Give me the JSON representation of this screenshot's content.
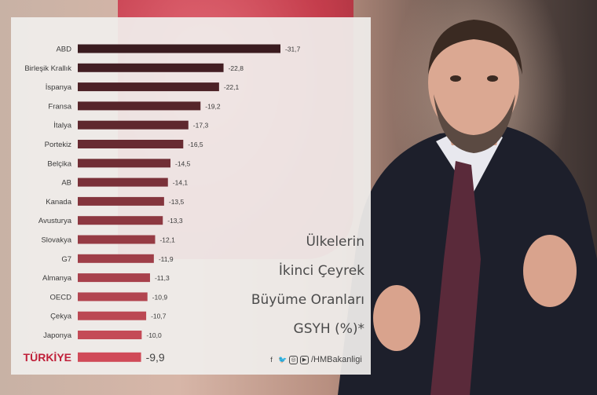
{
  "chart_data": {
    "type": "bar",
    "orientation": "horizontal",
    "categories": [
      "ABD",
      "Birleşik Krallık",
      "İspanya",
      "Fransa",
      "İtalya",
      "Portekiz",
      "Belçika",
      "AB",
      "Kanada",
      "Avusturya",
      "Slovakya",
      "G7",
      "Almanya",
      "OECD",
      "Çekya",
      "Japonya",
      "TÜRKİYE"
    ],
    "values": [
      -31.7,
      -22.8,
      -22.1,
      -19.2,
      -17.3,
      -16.5,
      -14.5,
      -14.1,
      -13.5,
      -13.3,
      -12.1,
      -11.9,
      -11.3,
      -10.9,
      -10.7,
      -10.0,
      -9.9
    ],
    "value_labels": [
      "-31,7",
      "-22,8",
      "-22,1",
      "-19,2",
      "-17,3",
      "-16,5",
      "-14,5",
      "-14,1",
      "-13,5",
      "-13,3",
      "-12,1",
      "-11,9",
      "-11,3",
      "-10,9",
      "-10,7",
      "-10,0",
      "-9,9"
    ],
    "title_lines": [
      "Ülkelerin",
      "İkinci Çeyrek",
      "Büyüme Oranları",
      "GSYH (%)*"
    ],
    "highlight": "TÜRKİYE",
    "grid": false,
    "legend": "none",
    "colors": {
      "dark": "#3a1b1f",
      "light": "#c44b57",
      "highlight": "#d04a58",
      "highlight_label": "#c0203a"
    }
  },
  "footer": {
    "handle": "/HMBakanligi",
    "icons": [
      "facebook-icon",
      "twitter-icon",
      "instagram-icon",
      "youtube-icon"
    ]
  }
}
